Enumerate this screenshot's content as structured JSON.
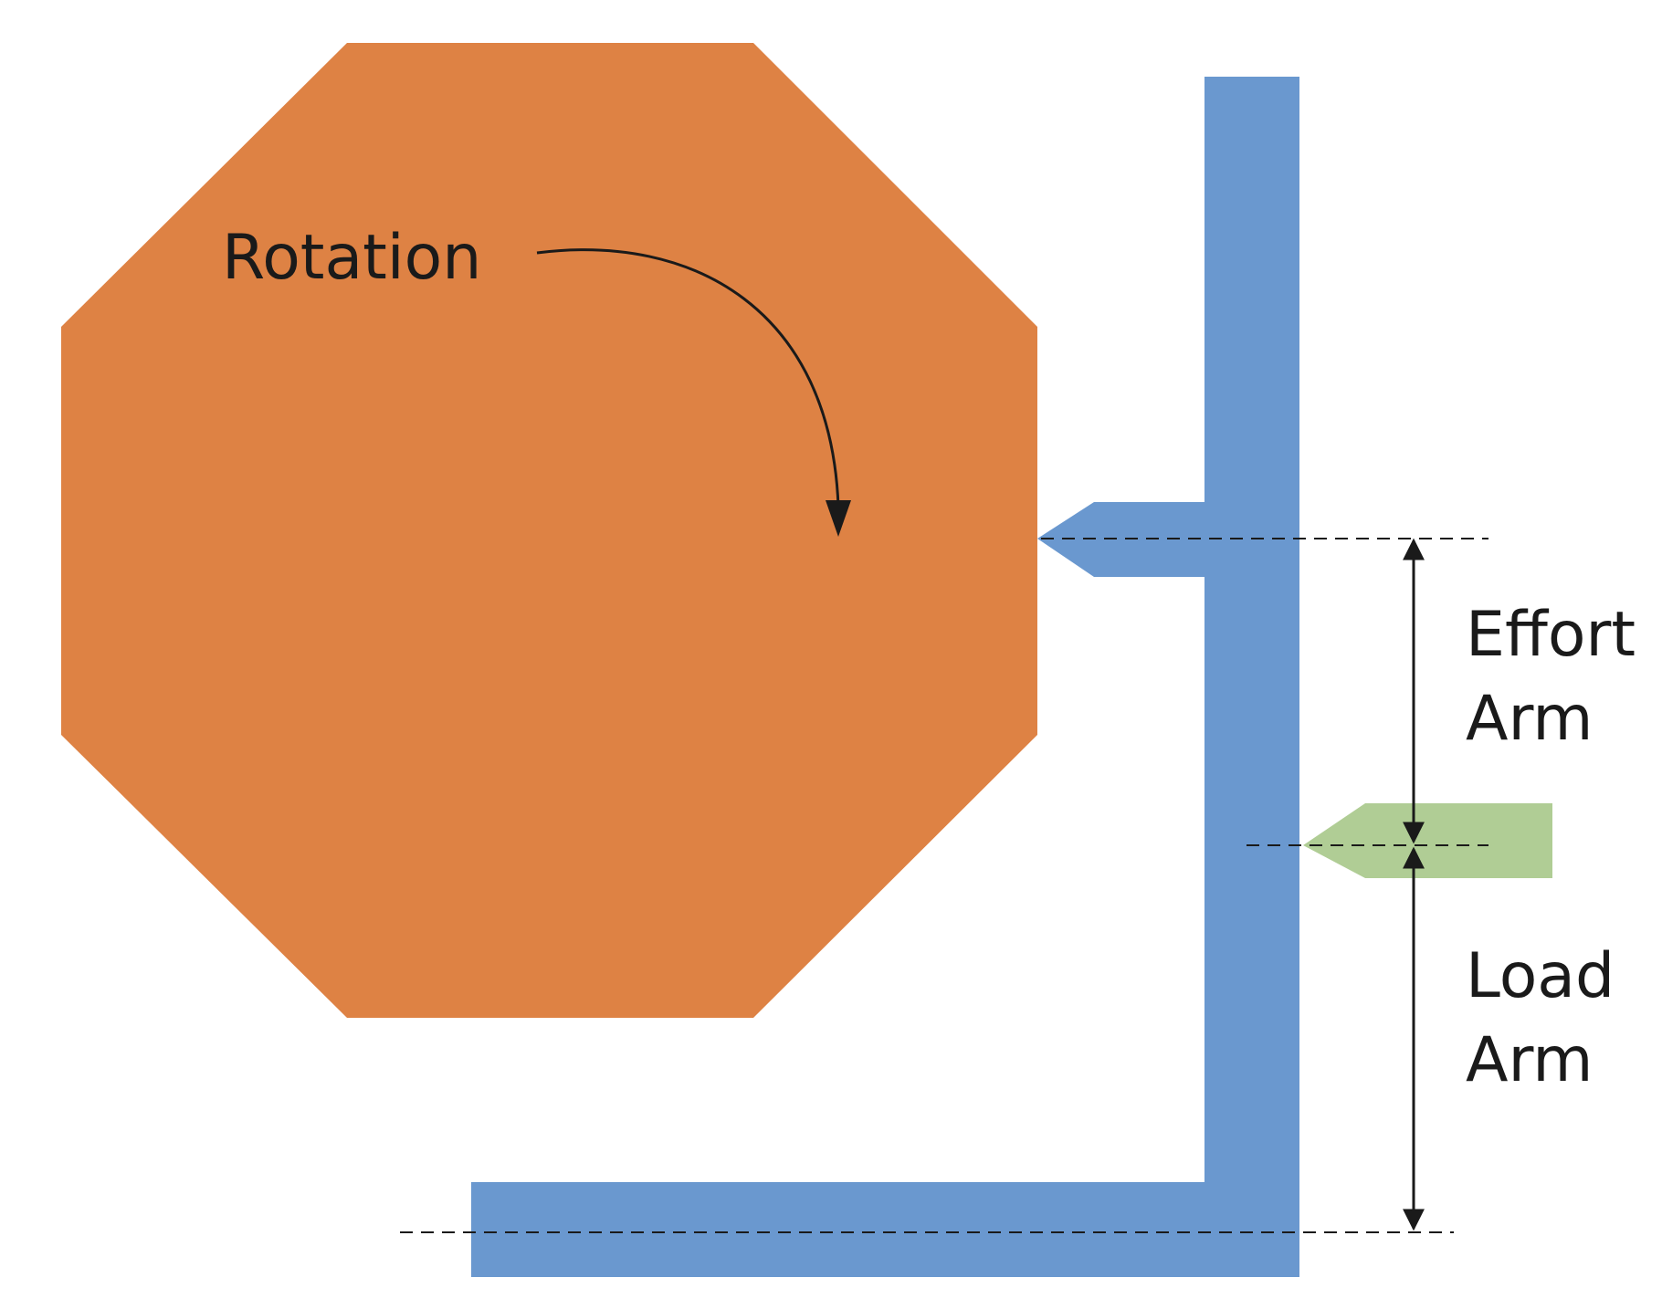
{
  "labels": {
    "rotation": "Rotation",
    "effort_line1": "Effort",
    "effort_line2": "Arm",
    "load_line1": "Load",
    "load_line2": "Arm"
  },
  "colors": {
    "cam": "#DE8244",
    "lever": "#6A98CF",
    "load_tip": "#B0CD95",
    "ink": "#1a1a1a",
    "background": "#ffffff"
  }
}
